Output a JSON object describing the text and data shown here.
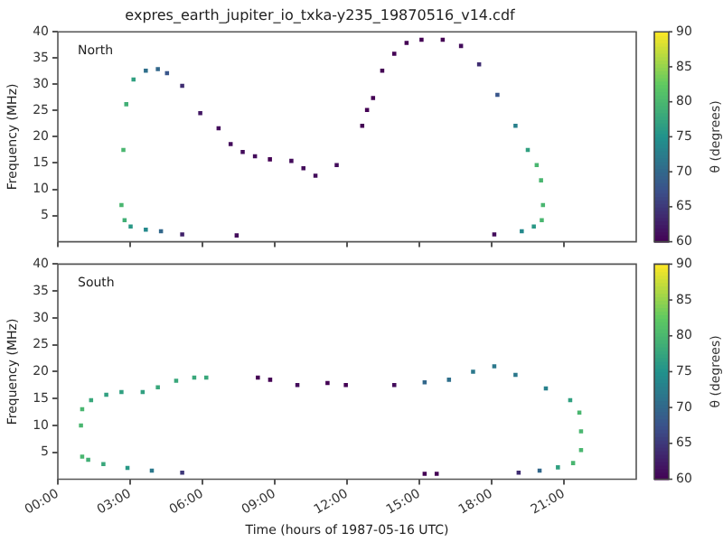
{
  "chart_data": [
    {
      "type": "scatter",
      "title": "expres_earth_jupiter_io_txka-y235_19870516_v14.cdf",
      "ylabel": "Frequency (MHz)",
      "clabel": "θ (degrees)",
      "annotations": [
        "North"
      ],
      "marker": "square",
      "tick_labels": "y",
      "x": [
        2.64,
        2.72,
        2.84,
        3.14,
        3.65,
        4.15,
        4.53,
        5.16,
        5.91,
        6.67,
        7.17,
        7.67,
        8.18,
        8.8,
        9.69,
        10.19,
        10.69,
        11.57,
        12.63,
        12.83,
        13.08,
        13.46,
        13.96,
        14.47,
        15.09,
        15.97,
        16.73,
        17.48,
        18.24,
        18.99,
        19.5,
        19.87,
        20.05,
        20.13,
        20.08,
        19.75,
        19.25,
        18.11,
        2.77,
        3.02,
        3.65,
        4.28,
        5.16,
        7.42
      ],
      "values": [
        7,
        17.5,
        26.2,
        30.9,
        32.6,
        32.9,
        32.1,
        29.7,
        24.5,
        21.6,
        18.6,
        17.1,
        16.3,
        15.7,
        15.4,
        14,
        12.6,
        14.6,
        22.1,
        25.1,
        27.4,
        32.6,
        35.8,
        37.9,
        38.5,
        38.5,
        37.3,
        33.8,
        28,
        22.1,
        17.5,
        14.6,
        11.7,
        7,
        4.1,
        2.9,
        2,
        1.4,
        4.1,
        2.9,
        2.3,
        2,
        1.4,
        1.2
      ],
      "cvalues": [
        80,
        80,
        79,
        77,
        71,
        70,
        68,
        64,
        62,
        61,
        61,
        61,
        61,
        60,
        61,
        61,
        61,
        61,
        60,
        60,
        60,
        60,
        60,
        60,
        60,
        60,
        61,
        64,
        68,
        73,
        77,
        80,
        80,
        80,
        80,
        76,
        74,
        61,
        79,
        76,
        74,
        70,
        63,
        61
      ],
      "xlim": [
        0,
        24
      ],
      "xticks": [
        0,
        3,
        6,
        9,
        12,
        15,
        18,
        21
      ],
      "ylim": [
        0,
        40
      ],
      "yticks": [
        5,
        10,
        15,
        20,
        25,
        30,
        35,
        40
      ],
      "clim": [
        60,
        90
      ],
      "cticks": [
        60,
        65,
        70,
        75,
        80,
        85,
        90
      ]
    },
    {
      "type": "scatter",
      "xlabel": "Time (hours of 1987-05-16 UTC)",
      "ylabel": "Frequency (MHz)",
      "clabel": "θ (degrees)",
      "annotations": [
        "South"
      ],
      "marker": "square",
      "x": [
        1.01,
        0.96,
        1.01,
        1.38,
        2.01,
        2.64,
        3.52,
        4.15,
        4.91,
        5.66,
        6.16,
        8.3,
        8.81,
        9.94,
        11.19,
        11.95,
        13.96,
        15.22,
        16.23,
        17.23,
        18.11,
        18.99,
        20.25,
        21.26,
        21.64,
        21.71,
        21.71,
        21.38,
        20.75,
        19.99,
        19.12,
        15.72,
        15.22,
        5.16,
        3.9,
        2.89,
        1.89,
        1.26
      ],
      "values": [
        4.2,
        10,
        13,
        14.7,
        15.7,
        16.2,
        16.2,
        17.1,
        18.3,
        18.9,
        18.9,
        18.9,
        18.5,
        17.5,
        17.9,
        17.5,
        17.5,
        18,
        18.5,
        20,
        21,
        19.4,
        16.9,
        14.7,
        12.4,
        8.9,
        5.4,
        3,
        2.2,
        1.6,
        1.2,
        1,
        1,
        1.2,
        1.6,
        2.1,
        2.8,
        3.6
      ],
      "cvalues": [
        80,
        80,
        80,
        78,
        77,
        77,
        77,
        78,
        78,
        78,
        78,
        60,
        60,
        61,
        60,
        60,
        61,
        70,
        71,
        72,
        72,
        72,
        73,
        77,
        80,
        80,
        80,
        80,
        77,
        70,
        64,
        60,
        60,
        65,
        72,
        76,
        78,
        79
      ],
      "xlim": [
        0,
        24
      ],
      "xticks": [
        {
          "value": 0,
          "label": "00:00"
        },
        {
          "value": 3,
          "label": "03:00"
        },
        {
          "value": 6,
          "label": "06:00"
        },
        {
          "value": 9,
          "label": "09:00"
        },
        {
          "value": 12,
          "label": "12:00"
        },
        {
          "value": 15,
          "label": "15:00"
        },
        {
          "value": 18,
          "label": "18:00"
        },
        {
          "value": 21,
          "label": "21:00"
        }
      ],
      "ylim": [
        0,
        40
      ],
      "yticks": [
        5,
        10,
        15,
        20,
        25,
        30,
        35,
        40
      ],
      "clim": [
        60,
        90
      ],
      "cticks": [
        60,
        65,
        70,
        75,
        80,
        85,
        90
      ]
    }
  ]
}
